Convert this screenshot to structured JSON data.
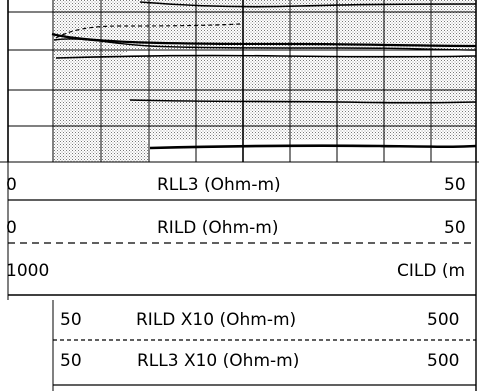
{
  "chart_data": {
    "type": "line",
    "track": "resistivity log track (grid continues above view)",
    "curves": [
      {
        "mnemonic": "RLL3",
        "unit": "Ohm-m",
        "scale_left": "0",
        "scale_right": "50",
        "line_style": "solid",
        "color": "#000000"
      },
      {
        "mnemonic": "RILD",
        "unit": "Ohm-m",
        "scale_left": "0",
        "scale_right": "50",
        "line_style": "dashed",
        "color": "#000000"
      },
      {
        "mnemonic": "CILD",
        "unit": "(m",
        "scale_left": "1000",
        "scale_right": "",
        "line_style": "solid",
        "color": "#000000"
      },
      {
        "mnemonic": "RILD X10",
        "unit": "Ohm-m",
        "scale_left": "50",
        "scale_right": "500",
        "line_style": "dashed",
        "color": "#000000"
      },
      {
        "mnemonic": "RLL3 X10",
        "unit": "Ohm-m",
        "scale_left": "50",
        "scale_right": "500",
        "line_style": "solid",
        "color": "#000000"
      }
    ],
    "fill": {
      "between": [
        "RLL3",
        "RILD"
      ],
      "pattern": "stipple",
      "color": "#c8c8c8"
    },
    "grid": true,
    "linear_scale_divisions": 10
  },
  "headers": {
    "rll3": {
      "left": "0",
      "label": "RLL3 (Ohm-m)",
      "right": "50"
    },
    "rild": {
      "left": "0",
      "label": "RILD (Ohm-m)",
      "right": "50"
    },
    "cild": {
      "left": "1000",
      "label": "CILD (m"
    },
    "rild_x10": {
      "left": "50",
      "label": "RILD X10 (Ohm-m)",
      "right": "500"
    },
    "rll3_x10": {
      "left": "50",
      "label": "RLL3 X10 (Ohm-m)",
      "right": "500"
    }
  }
}
